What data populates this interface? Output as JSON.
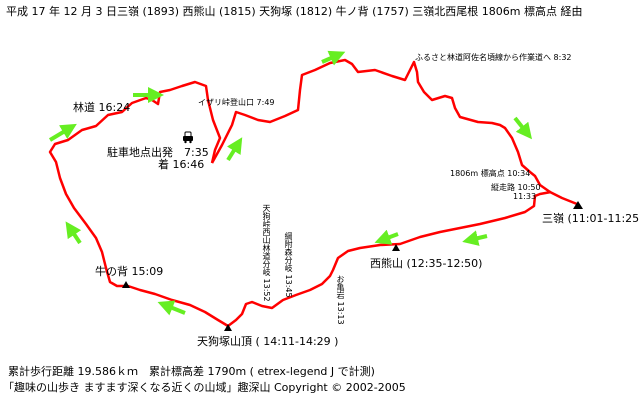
{
  "title": "平成 17 年 12 月 3 日三嶺 (1893)  西熊山 (1815)  天狗塚 (1812)  牛ノ背 (1757)   三嶺北西尾根  1806m 標高点  経由",
  "colors": {
    "route": "#ff0000",
    "arrow": "#66ee22",
    "text": "#000000",
    "background": "#ffffff"
  },
  "labels": {
    "furusato": "ふるさと林道阿佐名頃線から作業道へ 8:32",
    "izari": "イザリ峠登山口 7:49",
    "rindo": "林道 16:24",
    "parking_depart": "駐車地点出発　7:35",
    "parking_arrive": "着 16:46",
    "point1806": "1806m 標高点 10:34",
    "jusoro": "縦走路 10:50",
    "jusoro2": "11:33",
    "sanrei": "三嶺 (11:01-11:25)",
    "nishikuma": "西熊山 (12:35-12:50)",
    "okameiwa": "お亀岩 13:13",
    "tsunatsuke": "綱附森分岐 13:45",
    "tengu_pass": "天狗峠西山林道分岐 13:52",
    "tengutsuka": "天狗塚山頂 ( 14:11-14:29 )",
    "ushinose": "牛の背 15:09"
  },
  "icons": {
    "parking": "car-icon",
    "summit": "triangle-summit-icon",
    "direction": "green-arrow-icon"
  },
  "footer": {
    "stats": "累計歩行距離 19.586ｋｍ　累計標高差 1790m ( etrex-legend J で計測)",
    "copyright": "「趣味の山歩き ますます深くなる近くの山域」趣深山  Copyright © 2002-2005"
  }
}
